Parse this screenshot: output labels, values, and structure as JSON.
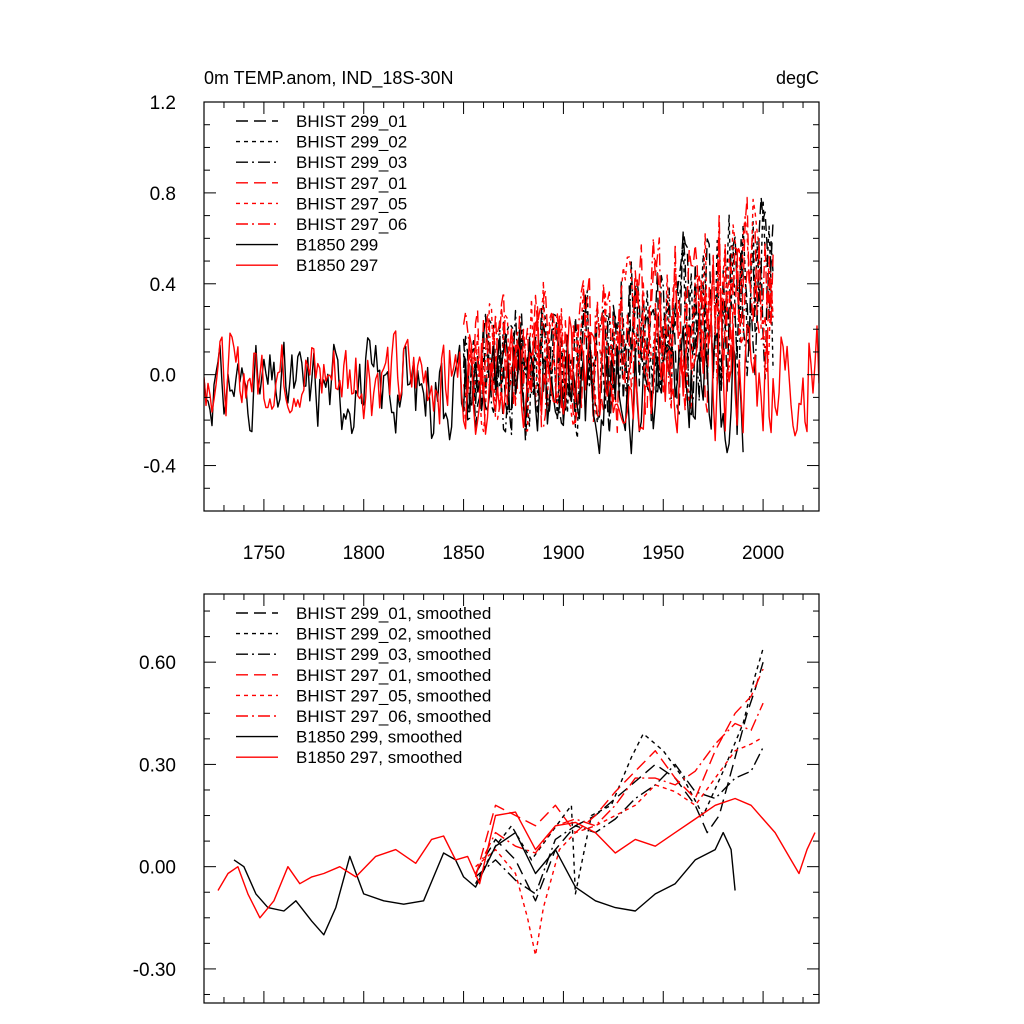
{
  "chart_data": [
    {
      "type": "line",
      "title": "0m TEMP.anom, IND_18S-30N",
      "units": "degC",
      "xlim": [
        1720,
        2028
      ],
      "ylim": [
        -0.6,
        1.2
      ],
      "xticks": [
        1750,
        1800,
        1850,
        1900,
        1950,
        2000
      ],
      "xtick_labels": [
        "1750",
        "1800",
        "1850",
        "1900",
        "1950",
        "2000"
      ],
      "yticks": [
        -0.4,
        0.0,
        0.4,
        0.8,
        1.2
      ],
      "ytick_labels": [
        "-0.4",
        "0.0",
        "0.4",
        "0.8",
        "1.2"
      ],
      "legend_position": "top-left",
      "series": [
        {
          "name": "BHIST 299_01",
          "color": "#000000",
          "dash": "long-dash",
          "x_range": [
            1850,
            2005
          ],
          "mean_start": 0.0,
          "mean_end": 0.45,
          "amplitude": 0.3,
          "seed": 11
        },
        {
          "name": "BHIST 299_02",
          "color": "#000000",
          "dash": "short-dash",
          "x_range": [
            1850,
            2005
          ],
          "mean_start": 0.0,
          "mean_end": 0.45,
          "amplitude": 0.3,
          "seed": 12
        },
        {
          "name": "BHIST 299_03",
          "color": "#000000",
          "dash": "dash-dot",
          "x_range": [
            1850,
            2005
          ],
          "mean_start": 0.0,
          "mean_end": 0.45,
          "amplitude": 0.3,
          "seed": 13
        },
        {
          "name": "BHIST 297_01",
          "color": "#ff0000",
          "dash": "long-dash",
          "x_range": [
            1850,
            2005
          ],
          "mean_start": 0.05,
          "mean_end": 0.45,
          "amplitude": 0.3,
          "seed": 21
        },
        {
          "name": "BHIST 297_05",
          "color": "#ff0000",
          "dash": "short-dash",
          "x_range": [
            1850,
            2005
          ],
          "mean_start": 0.05,
          "mean_end": 0.45,
          "amplitude": 0.3,
          "seed": 22
        },
        {
          "name": "BHIST 297_06",
          "color": "#ff0000",
          "dash": "dash-dot",
          "x_range": [
            1850,
            2005
          ],
          "mean_start": 0.05,
          "mean_end": 0.45,
          "amplitude": 0.3,
          "seed": 23
        },
        {
          "name": "B1850 299",
          "color": "#000000",
          "dash": "solid",
          "x_range": [
            1720,
            1990
          ],
          "mean_start": -0.05,
          "mean_end": -0.05,
          "amplitude": 0.2,
          "seed": 31
        },
        {
          "name": "B1850 297",
          "color": "#ff0000",
          "dash": "solid",
          "x_range": [
            1720,
            2028
          ],
          "mean_start": 0.0,
          "mean_end": 0.0,
          "amplitude": 0.2,
          "seed": 32
        }
      ]
    },
    {
      "type": "line",
      "xlim": [
        1720,
        2028
      ],
      "ylim": [
        -0.4,
        0.8
      ],
      "yticks": [
        -0.3,
        0.0,
        0.3,
        0.6
      ],
      "ytick_labels": [
        "-0.30",
        "0.00",
        "0.30",
        "0.60"
      ],
      "legend_position": "top-left",
      "series": [
        {
          "name": "BHIST 299_01, smoothed",
          "color": "#000000",
          "dash": "long-dash",
          "points": [
            [
              1856,
              -0.02
            ],
            [
              1866,
              0.08
            ],
            [
              1876,
              0.02
            ],
            [
              1886,
              -0.1
            ],
            [
              1896,
              0.05
            ],
            [
              1906,
              0.12
            ],
            [
              1916,
              0.15
            ],
            [
              1926,
              0.2
            ],
            [
              1936,
              0.25
            ],
            [
              1946,
              0.3
            ],
            [
              1956,
              0.26
            ],
            [
              1966,
              0.18
            ],
            [
              1972,
              0.1
            ],
            [
              1978,
              0.15
            ],
            [
              1986,
              0.32
            ],
            [
              1992,
              0.45
            ],
            [
              1996,
              0.52
            ],
            [
              2000,
              0.6
            ]
          ]
        },
        {
          "name": "BHIST 299_02, smoothed",
          "color": "#000000",
          "dash": "short-dash",
          "points": [
            [
              1856,
              -0.05
            ],
            [
              1866,
              0.06
            ],
            [
              1874,
              0.12
            ],
            [
              1884,
              0.02
            ],
            [
              1894,
              0.1
            ],
            [
              1904,
              0.18
            ],
            [
              1906,
              -0.08
            ],
            [
              1914,
              0.15
            ],
            [
              1924,
              0.18
            ],
            [
              1934,
              0.32
            ],
            [
              1940,
              0.39
            ],
            [
              1950,
              0.34
            ],
            [
              1960,
              0.26
            ],
            [
              1970,
              0.15
            ],
            [
              1980,
              0.28
            ],
            [
              1990,
              0.42
            ],
            [
              1996,
              0.56
            ],
            [
              2000,
              0.64
            ]
          ]
        },
        {
          "name": "BHIST 299_03, smoothed",
          "color": "#000000",
          "dash": "dash-dot",
          "points": [
            [
              1856,
              -0.03
            ],
            [
              1866,
              0.02
            ],
            [
              1876,
              -0.04
            ],
            [
              1886,
              -0.08
            ],
            [
              1896,
              0.08
            ],
            [
              1906,
              0.12
            ],
            [
              1916,
              0.1
            ],
            [
              1926,
              0.14
            ],
            [
              1936,
              0.2
            ],
            [
              1946,
              0.24
            ],
            [
              1956,
              0.3
            ],
            [
              1966,
              0.22
            ],
            [
              1976,
              0.2
            ],
            [
              1986,
              0.26
            ],
            [
              1994,
              0.28
            ],
            [
              2000,
              0.35
            ]
          ]
        },
        {
          "name": "BHIST 297_01, smoothed",
          "color": "#ff0000",
          "dash": "long-dash",
          "points": [
            [
              1856,
              -0.03
            ],
            [
              1866,
              0.18
            ],
            [
              1876,
              0.15
            ],
            [
              1886,
              0.12
            ],
            [
              1896,
              0.18
            ],
            [
              1906,
              0.1
            ],
            [
              1916,
              0.15
            ],
            [
              1926,
              0.22
            ],
            [
              1936,
              0.28
            ],
            [
              1946,
              0.34
            ],
            [
              1956,
              0.26
            ],
            [
              1966,
              0.2
            ],
            [
              1976,
              0.34
            ],
            [
              1986,
              0.45
            ],
            [
              1994,
              0.5
            ],
            [
              2000,
              0.58
            ]
          ]
        },
        {
          "name": "BHIST 297_05, smoothed",
          "color": "#ff0000",
          "dash": "short-dash",
          "points": [
            [
              1856,
              0.0
            ],
            [
              1866,
              0.05
            ],
            [
              1876,
              -0.02
            ],
            [
              1882,
              -0.15
            ],
            [
              1886,
              -0.26
            ],
            [
              1890,
              -0.12
            ],
            [
              1898,
              0.05
            ],
            [
              1906,
              0.1
            ],
            [
              1916,
              0.12
            ],
            [
              1926,
              0.15
            ],
            [
              1936,
              0.18
            ],
            [
              1946,
              0.24
            ],
            [
              1956,
              0.22
            ],
            [
              1966,
              0.18
            ],
            [
              1976,
              0.26
            ],
            [
              1986,
              0.34
            ],
            [
              1994,
              0.36
            ],
            [
              2000,
              0.38
            ]
          ]
        },
        {
          "name": "BHIST 297_06, smoothed",
          "color": "#ff0000",
          "dash": "dash-dot",
          "points": [
            [
              1856,
              -0.02
            ],
            [
              1866,
              0.1
            ],
            [
              1876,
              0.06
            ],
            [
              1886,
              0.04
            ],
            [
              1896,
              0.12
            ],
            [
              1906,
              0.14
            ],
            [
              1916,
              0.12
            ],
            [
              1926,
              0.18
            ],
            [
              1936,
              0.26
            ],
            [
              1946,
              0.26
            ],
            [
              1956,
              0.24
            ],
            [
              1966,
              0.28
            ],
            [
              1976,
              0.36
            ],
            [
              1986,
              0.42
            ],
            [
              1994,
              0.4
            ],
            [
              2000,
              0.48
            ]
          ]
        },
        {
          "name": "B1850 299, smoothed",
          "color": "#000000",
          "dash": "solid",
          "points": [
            [
              1735,
              0.02
            ],
            [
              1740,
              0.0
            ],
            [
              1746,
              -0.08
            ],
            [
              1752,
              -0.12
            ],
            [
              1760,
              -0.13
            ],
            [
              1766,
              -0.1
            ],
            [
              1774,
              -0.16
            ],
            [
              1780,
              -0.2
            ],
            [
              1786,
              -0.12
            ],
            [
              1793,
              0.03
            ],
            [
              1800,
              -0.08
            ],
            [
              1810,
              -0.1
            ],
            [
              1820,
              -0.11
            ],
            [
              1830,
              -0.1
            ],
            [
              1840,
              0.04
            ],
            [
              1846,
              0.02
            ],
            [
              1850,
              -0.03
            ],
            [
              1856,
              -0.06
            ],
            [
              1866,
              0.06
            ],
            [
              1876,
              0.1
            ],
            [
              1886,
              -0.02
            ],
            [
              1896,
              0.05
            ],
            [
              1906,
              -0.06
            ],
            [
              1916,
              -0.1
            ],
            [
              1926,
              -0.12
            ],
            [
              1936,
              -0.13
            ],
            [
              1946,
              -0.08
            ],
            [
              1956,
              -0.05
            ],
            [
              1966,
              0.02
            ],
            [
              1976,
              0.05
            ],
            [
              1980,
              0.1
            ],
            [
              1984,
              0.05
            ],
            [
              1986,
              -0.07
            ]
          ]
        },
        {
          "name": "B1850 297, smoothed",
          "color": "#ff0000",
          "dash": "solid",
          "points": [
            [
              1727,
              -0.07
            ],
            [
              1732,
              -0.02
            ],
            [
              1737,
              0.0
            ],
            [
              1742,
              -0.08
            ],
            [
              1748,
              -0.15
            ],
            [
              1755,
              -0.1
            ],
            [
              1762,
              0.0
            ],
            [
              1768,
              -0.05
            ],
            [
              1774,
              -0.03
            ],
            [
              1780,
              -0.02
            ],
            [
              1788,
              0.0
            ],
            [
              1796,
              -0.03
            ],
            [
              1806,
              0.03
            ],
            [
              1816,
              0.05
            ],
            [
              1826,
              0.01
            ],
            [
              1834,
              0.08
            ],
            [
              1840,
              0.09
            ],
            [
              1846,
              0.02
            ],
            [
              1852,
              0.03
            ],
            [
              1858,
              -0.05
            ],
            [
              1866,
              0.15
            ],
            [
              1876,
              0.16
            ],
            [
              1886,
              0.05
            ],
            [
              1896,
              0.12
            ],
            [
              1906,
              0.13
            ],
            [
              1916,
              0.1
            ],
            [
              1926,
              0.04
            ],
            [
              1936,
              0.08
            ],
            [
              1946,
              0.06
            ],
            [
              1956,
              0.1
            ],
            [
              1966,
              0.14
            ],
            [
              1976,
              0.18
            ],
            [
              1986,
              0.2
            ],
            [
              1994,
              0.18
            ],
            [
              2000,
              0.14
            ],
            [
              2006,
              0.1
            ],
            [
              2014,
              0.02
            ],
            [
              2018,
              -0.02
            ],
            [
              2022,
              0.05
            ],
            [
              2026,
              0.1
            ]
          ]
        }
      ]
    }
  ]
}
